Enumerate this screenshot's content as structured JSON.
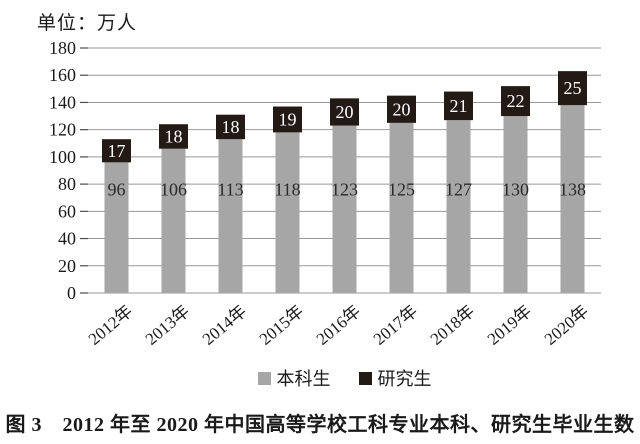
{
  "unit_label": "单位：万人",
  "caption": "图 3　2012 年至 2020 年中国高等学校工科专业本科、研究生毕业生数",
  "colors": {
    "background": "#ffffff",
    "gridline": "#999999",
    "tick": "#4d4d4d",
    "text": "#1a1a1a",
    "bar_label_light": "#ffffff",
    "bar_label_dark": "#2a2a2a"
  },
  "chart_data": {
    "type": "bar",
    "stacked": true,
    "title": "图 3　2012 年至 2020 年中国高等学校工科专业本科、研究生毕业生数",
    "unit": "万人",
    "xlabel": "",
    "ylabel": "单位：万人",
    "categories": [
      "2012年",
      "2013年",
      "2014年",
      "2015年",
      "2016年",
      "2017年",
      "2018年",
      "2019年",
      "2020年"
    ],
    "series": [
      {
        "name": "本科生",
        "color": "#a6a6a6",
        "values": [
          96,
          106,
          113,
          118,
          123,
          125,
          127,
          130,
          138
        ]
      },
      {
        "name": "研究生",
        "color": "#241a15",
        "values": [
          17,
          18,
          18,
          19,
          20,
          20,
          21,
          22,
          25
        ]
      }
    ],
    "totals": [
      113,
      124,
      131,
      137,
      143,
      145,
      148,
      152,
      163
    ],
    "ylim": [
      0,
      180
    ],
    "yticks": [
      0,
      20,
      40,
      60,
      80,
      100,
      120,
      140,
      160,
      180
    ],
    "grid": true,
    "legend_position": "bottom"
  }
}
